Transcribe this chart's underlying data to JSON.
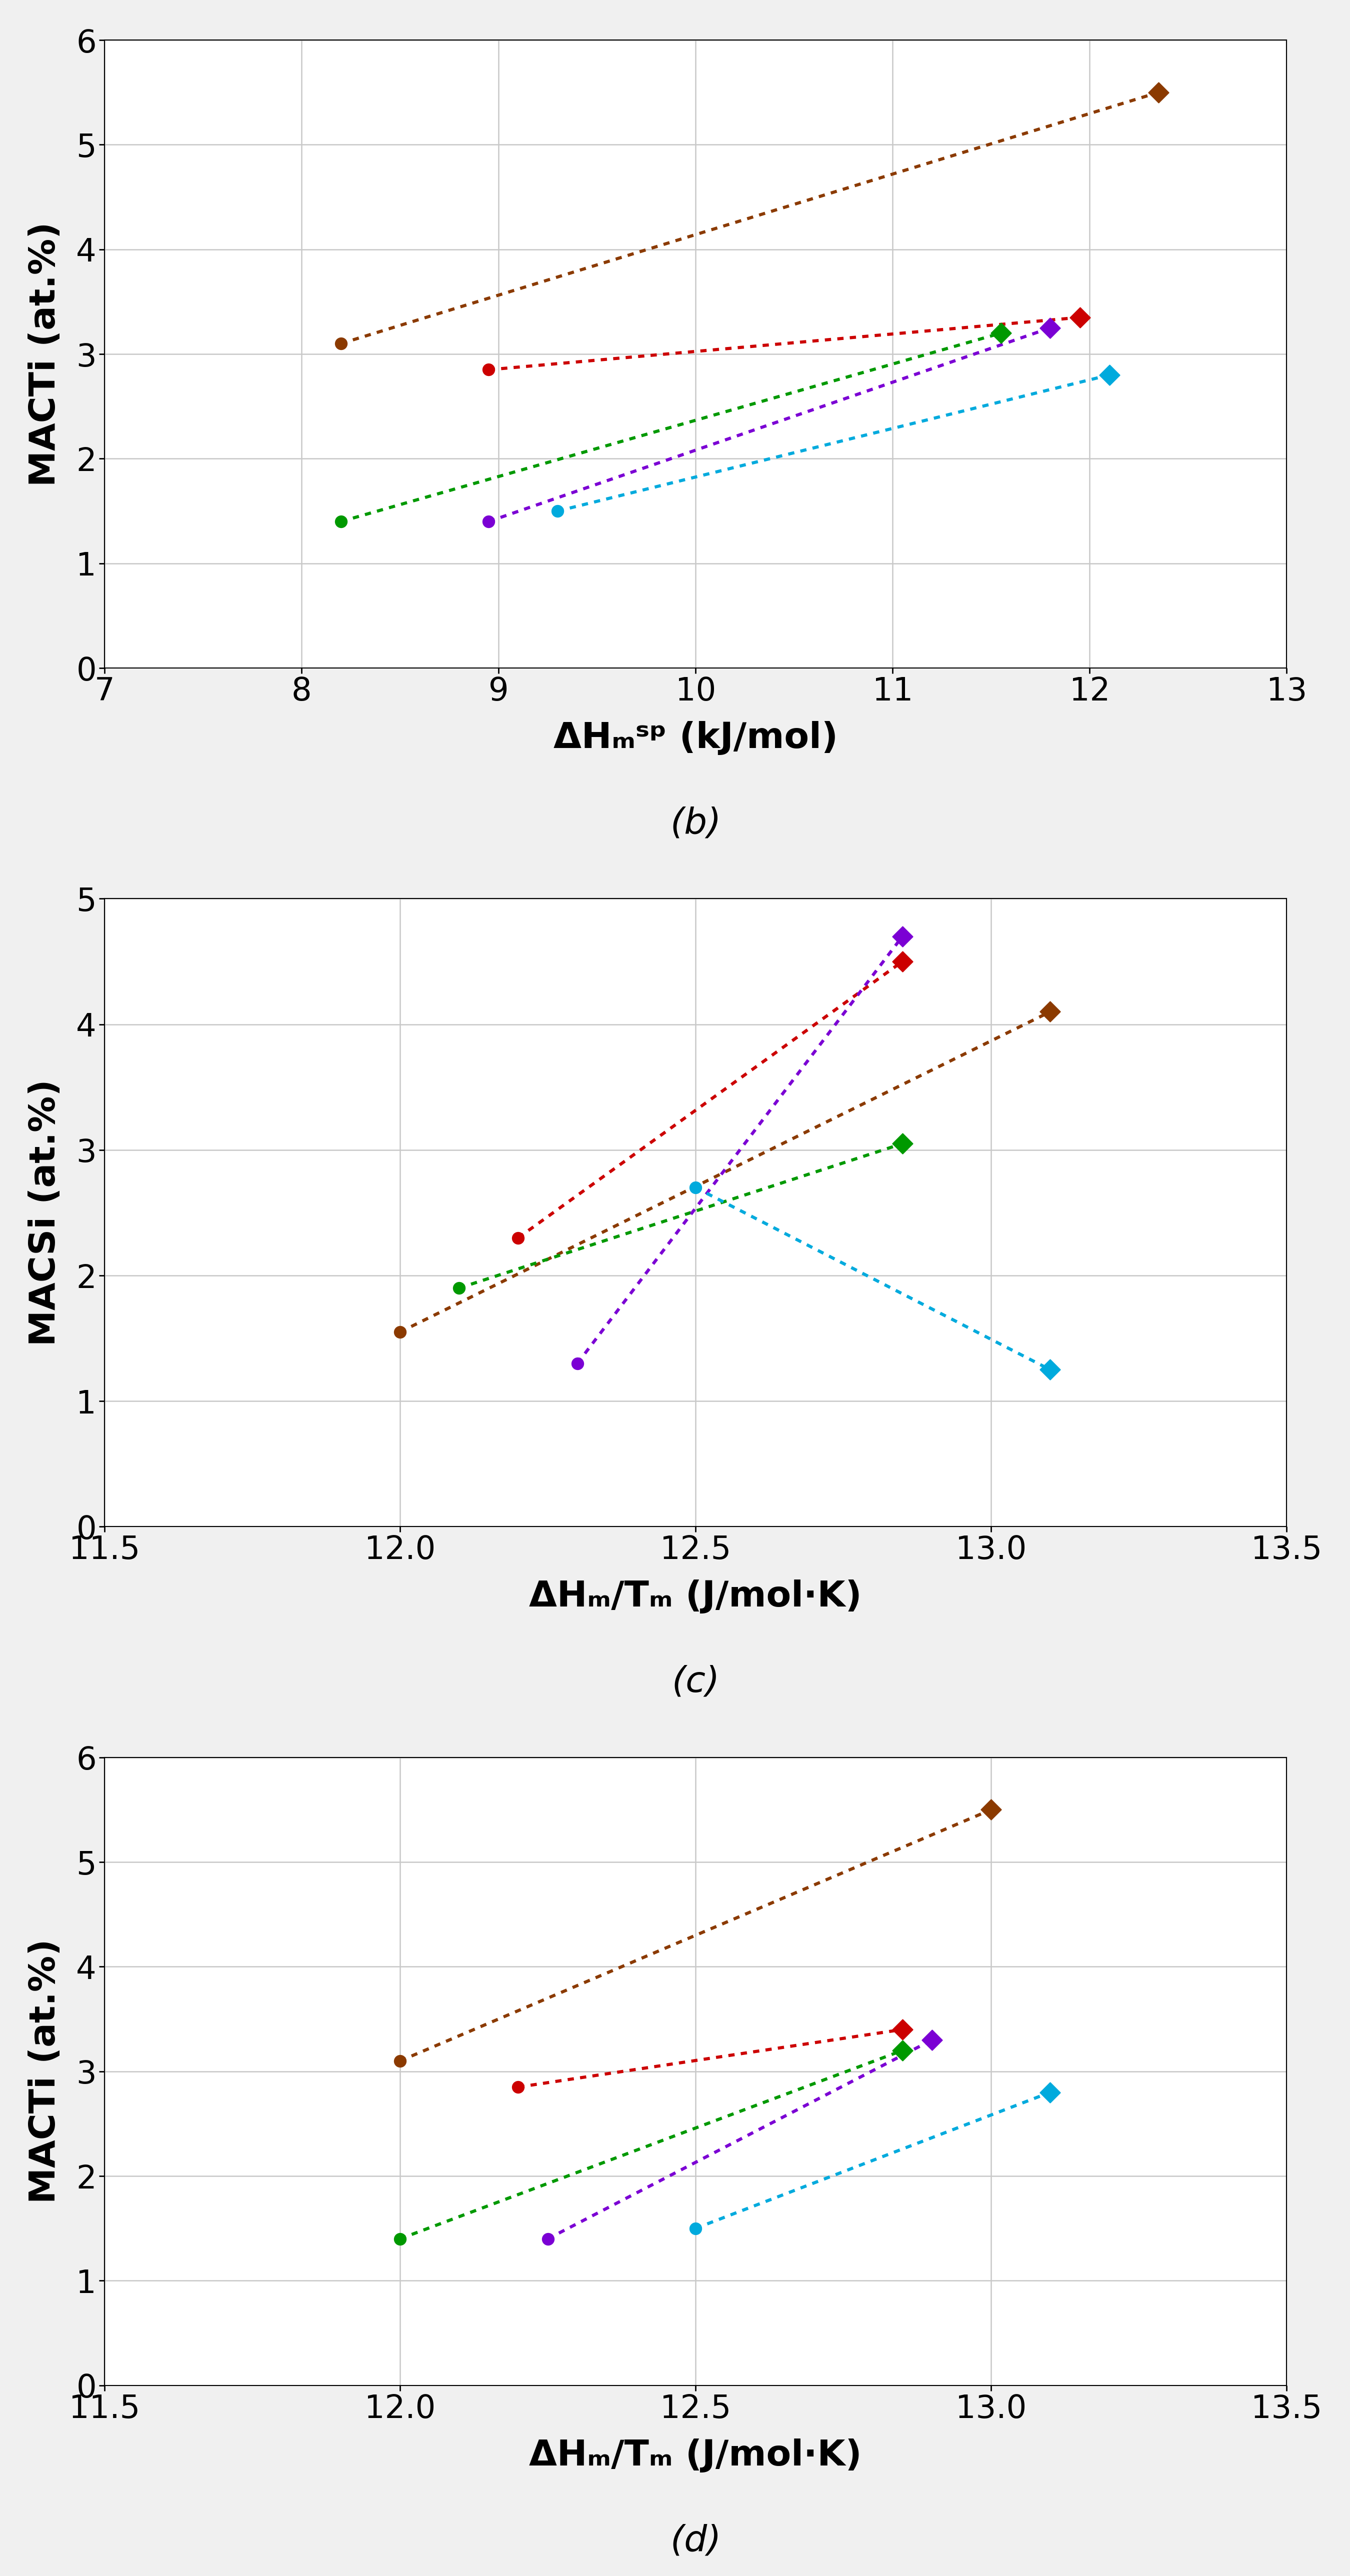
{
  "charts": [
    {
      "label": "(b)",
      "ylabel": "MACTi (at.%)",
      "xlabel": "ΔHₘˢᵖ (kJ/mol)",
      "xlim": [
        7,
        13
      ],
      "ylim": [
        0,
        6
      ],
      "xticks": [
        7,
        8,
        9,
        10,
        11,
        12,
        13
      ],
      "yticks": [
        0,
        1,
        2,
        3,
        4,
        5,
        6
      ],
      "series": [
        {
          "color": "#8B3A00",
          "circle_x": 8.2,
          "circle_y": 3.1,
          "diamond_x": 12.35,
          "diamond_y": 5.5
        },
        {
          "color": "#CC0000",
          "circle_x": 8.95,
          "circle_y": 2.85,
          "diamond_x": 11.95,
          "diamond_y": 3.35
        },
        {
          "color": "#009900",
          "circle_x": 8.2,
          "circle_y": 1.4,
          "diamond_x": 11.55,
          "diamond_y": 3.2
        },
        {
          "color": "#7B00D4",
          "circle_x": 8.95,
          "circle_y": 1.4,
          "diamond_x": 11.8,
          "diamond_y": 3.25
        },
        {
          "color": "#00AADD",
          "circle_x": 9.3,
          "circle_y": 1.5,
          "diamond_x": 12.1,
          "diamond_y": 2.8
        }
      ]
    },
    {
      "label": "(c)",
      "ylabel": "MACSi (at.%)",
      "xlabel": "ΔHₘ/Tₘ (J/mol·K)",
      "xlim": [
        11.5,
        13.5
      ],
      "ylim": [
        0,
        5
      ],
      "xticks": [
        11.5,
        12.0,
        12.5,
        13.0,
        13.5
      ],
      "yticks": [
        0,
        1,
        2,
        3,
        4,
        5
      ],
      "series": [
        {
          "color": "#8B3A00",
          "circle_x": 12.0,
          "circle_y": 1.55,
          "diamond_x": 13.1,
          "diamond_y": 4.1
        },
        {
          "color": "#CC0000",
          "circle_x": 12.2,
          "circle_y": 2.3,
          "diamond_x": 12.85,
          "diamond_y": 4.5
        },
        {
          "color": "#009900",
          "circle_x": 12.1,
          "circle_y": 1.9,
          "diamond_x": 12.85,
          "diamond_y": 3.05
        },
        {
          "color": "#7B00D4",
          "circle_x": 12.3,
          "circle_y": 1.3,
          "diamond_x": 12.85,
          "diamond_y": 4.7
        },
        {
          "color": "#00AADD",
          "circle_x": 12.5,
          "circle_y": 2.7,
          "diamond_x": 13.1,
          "diamond_y": 1.25
        }
      ]
    },
    {
      "label": "(d)",
      "ylabel": "MACTi (at.%)",
      "xlabel": "ΔHₘ/Tₘ (J/mol·K)",
      "xlim": [
        11.5,
        13.5
      ],
      "ylim": [
        0,
        6
      ],
      "xticks": [
        11.5,
        12.0,
        12.5,
        13.0,
        13.5
      ],
      "yticks": [
        0,
        1,
        2,
        3,
        4,
        5,
        6
      ],
      "series": [
        {
          "color": "#8B3A00",
          "circle_x": 12.0,
          "circle_y": 3.1,
          "diamond_x": 13.0,
          "diamond_y": 5.5
        },
        {
          "color": "#CC0000",
          "circle_x": 12.2,
          "circle_y": 2.85,
          "diamond_x": 12.85,
          "diamond_y": 3.4
        },
        {
          "color": "#009900",
          "circle_x": 12.0,
          "circle_y": 1.4,
          "diamond_x": 12.85,
          "diamond_y": 3.2
        },
        {
          "color": "#7B00D4",
          "circle_x": 12.25,
          "circle_y": 1.4,
          "diamond_x": 12.9,
          "diamond_y": 3.3
        },
        {
          "color": "#00AADD",
          "circle_x": 12.5,
          "circle_y": 1.5,
          "diamond_x": 13.1,
          "diamond_y": 2.8
        }
      ]
    }
  ],
  "background_color": "#FFFFFF",
  "plot_bg_color": "#FFFFFF",
  "outer_bg_color": "#F0F0F0",
  "grid_color": "#C8C8C8",
  "marker_size_circle": 280,
  "marker_size_diamond": 420,
  "label_fontsize": 52,
  "tick_fontsize": 46,
  "annot_fontsize": 52,
  "line_width": 4.5
}
